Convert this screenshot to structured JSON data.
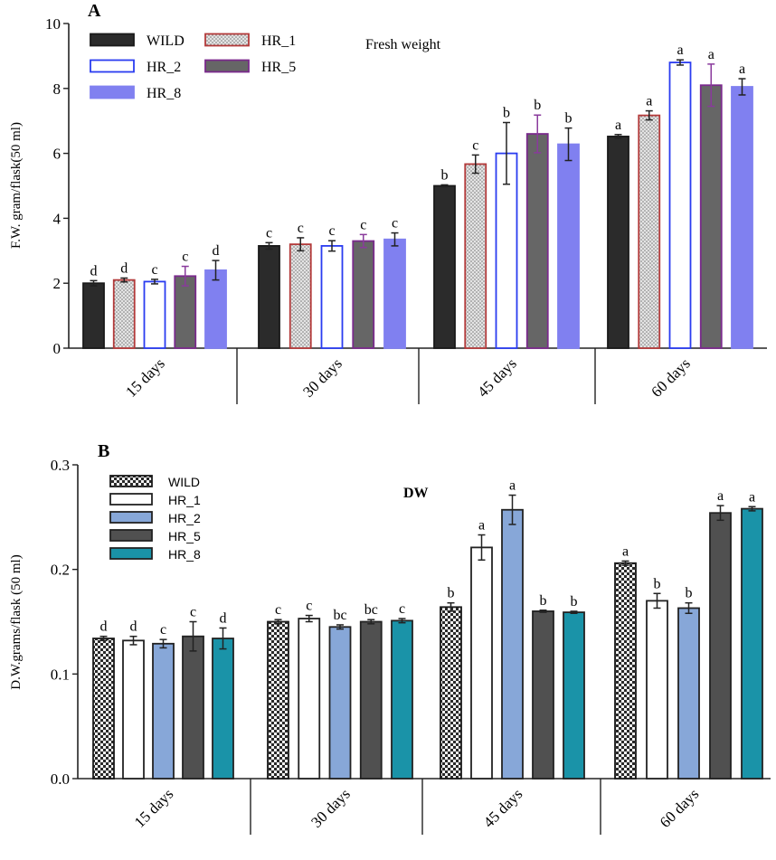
{
  "chart_data": [
    {
      "type": "bar",
      "panel_label": "A",
      "title": "Fresh weight",
      "xlabel": "",
      "ylabel": "F.W. gram/flask(50 ml)",
      "ylim": [
        0,
        10
      ],
      "yticks": [
        "0",
        "2",
        "4",
        "6",
        "8",
        "10"
      ],
      "categories": [
        "15 days",
        "30 days",
        "45 days",
        "60 days"
      ],
      "series": [
        {
          "name": "WILD",
          "fill": "#2b2b2b",
          "stroke": "#1a1a1a",
          "pattern": "none",
          "values": [
            2.0,
            3.15,
            5.0,
            6.52
          ],
          "errors": [
            0.08,
            0.1,
            0.03,
            0.06
          ],
          "letters": [
            "d",
            "c",
            "b",
            "a"
          ]
        },
        {
          "name": "HR_1",
          "fill": "#dcdcdc",
          "stroke": "#b33a3a",
          "pattern": "dots",
          "values": [
            2.1,
            3.2,
            5.67,
            7.17
          ],
          "errors": [
            0.06,
            0.2,
            0.28,
            0.14
          ],
          "letters": [
            "d",
            "c",
            "c",
            "a"
          ]
        },
        {
          "name": "HR_2",
          "fill": "#ffffff",
          "stroke": "#2a3cf0",
          "pattern": "none",
          "values": [
            2.05,
            3.15,
            6.0,
            8.8
          ],
          "errors": [
            0.07,
            0.16,
            0.95,
            0.08
          ],
          "letters": [
            "c",
            "c",
            "b",
            "a"
          ]
        },
        {
          "name": "HR_5",
          "fill": "#666666",
          "stroke": "#7a2a8c",
          "pattern": "none",
          "values": [
            2.22,
            3.3,
            6.6,
            8.1
          ],
          "errors": [
            0.3,
            0.2,
            0.58,
            0.65
          ],
          "letters": [
            "c",
            "c",
            "b",
            "a"
          ]
        },
        {
          "name": "HR_8",
          "fill": "#8080f0",
          "stroke": "#8080f0",
          "pattern": "none",
          "values": [
            2.4,
            3.35,
            6.28,
            8.05
          ],
          "errors": [
            0.3,
            0.2,
            0.5,
            0.25
          ],
          "letters": [
            "d",
            "c",
            "b",
            "a"
          ]
        }
      ],
      "legend": "top-left"
    },
    {
      "type": "bar",
      "panel_label": "B",
      "title": "DW",
      "xlabel": "",
      "ylabel": "D.W.grams/flask (50 ml)",
      "ylim": [
        0,
        0.3
      ],
      "yticks": [
        "0.0",
        "0.1",
        "0.2",
        "0.3"
      ],
      "categories": [
        "15 days",
        "30 days",
        "45 days",
        "60 days"
      ],
      "series": [
        {
          "name": "WILD",
          "fill": "#555555",
          "stroke": "#1a1a1a",
          "pattern": "checker",
          "values": [
            0.134,
            0.15,
            0.164,
            0.206
          ],
          "errors": [
            0.002,
            0.002,
            0.004,
            0.002
          ],
          "letters": [
            "d",
            "c",
            "b",
            "a"
          ]
        },
        {
          "name": "HR_1",
          "fill": "#ffffff",
          "stroke": "#222222",
          "pattern": "none",
          "values": [
            0.132,
            0.153,
            0.221,
            0.17
          ],
          "errors": [
            0.004,
            0.003,
            0.012,
            0.007
          ],
          "letters": [
            "d",
            "c",
            "a",
            "b"
          ]
        },
        {
          "name": "HR_2",
          "fill": "#87a7d8",
          "stroke": "#222222",
          "pattern": "none",
          "values": [
            0.129,
            0.145,
            0.257,
            0.163
          ],
          "errors": [
            0.004,
            0.002,
            0.014,
            0.005
          ],
          "letters": [
            "c",
            "bc",
            "a",
            "b"
          ]
        },
        {
          "name": "HR_5",
          "fill": "#505050",
          "stroke": "#222222",
          "pattern": "none",
          "values": [
            0.136,
            0.15,
            0.16,
            0.254
          ],
          "errors": [
            0.014,
            0.002,
            0.001,
            0.007
          ],
          "letters": [
            "c",
            "bc",
            "b",
            "a"
          ]
        },
        {
          "name": "HR_8",
          "fill": "#1a93a8",
          "stroke": "#222222",
          "pattern": "none",
          "values": [
            0.134,
            0.151,
            0.159,
            0.258
          ],
          "errors": [
            0.01,
            0.002,
            0.001,
            0.002
          ],
          "letters": [
            "d",
            "c",
            "b",
            "a"
          ]
        }
      ],
      "legend": "top-left"
    }
  ]
}
